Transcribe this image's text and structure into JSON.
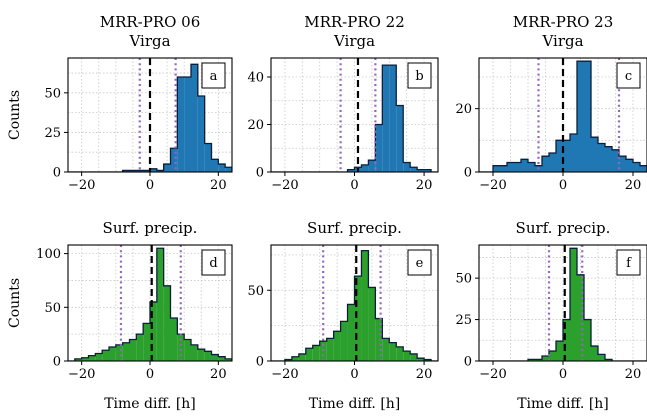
{
  "chart_data": [
    {
      "id": "a",
      "type": "histogram",
      "color": "#1f77b4",
      "title_line1": "MRR-PRO 06",
      "title_line2": "Virga",
      "ylabel": "Counts",
      "xlabel": "",
      "xlim": [
        -24,
        24
      ],
      "ylim": [
        0,
        72
      ],
      "xticks": [
        -20,
        0,
        20
      ],
      "yticks": [
        0,
        25,
        50
      ],
      "bin_width": 2,
      "bin_start": -24,
      "counts": [
        0,
        0,
        0,
        0,
        0,
        0,
        0,
        0,
        1,
        1,
        1,
        1,
        2,
        1,
        5,
        15,
        60,
        60,
        68,
        48,
        18,
        8,
        5,
        3
      ],
      "median": 0,
      "lower": -3,
      "upper": 7.5
    },
    {
      "id": "b",
      "type": "histogram",
      "color": "#1f77b4",
      "title_line1": "MRR-PRO 22",
      "title_line2": "Virga",
      "ylabel": "",
      "xlabel": "",
      "xlim": [
        -24,
        24
      ],
      "ylim": [
        0,
        48
      ],
      "xticks": [
        -20,
        0,
        20
      ],
      "yticks": [
        0,
        20,
        40
      ],
      "bin_width": 2,
      "bin_start": -24,
      "counts": [
        0,
        0,
        0,
        0,
        0,
        0,
        0,
        0,
        0,
        0,
        0,
        1,
        2,
        3,
        5,
        20,
        45,
        45,
        28,
        4,
        2,
        1,
        1,
        0
      ],
      "median": 1,
      "lower": -4,
      "upper": 6
    },
    {
      "id": "c",
      "type": "histogram",
      "color": "#1f77b4",
      "title_line1": "MRR-PRO 23",
      "title_line2": "Virga",
      "ylabel": "",
      "xlabel": "",
      "xlim": [
        -24,
        24
      ],
      "ylim": [
        0,
        36
      ],
      "xticks": [
        -20,
        0,
        20
      ],
      "yticks": [
        0,
        20
      ],
      "bin_width": 2,
      "bin_start": -24,
      "counts": [
        0,
        0,
        2,
        2,
        3,
        3,
        4,
        3,
        2,
        5,
        6,
        10,
        10,
        12,
        35,
        35,
        11,
        9,
        8,
        7,
        5,
        4,
        3,
        2
      ],
      "median": 0,
      "lower": -7,
      "upper": 16
    },
    {
      "id": "d",
      "type": "histogram",
      "color": "#2ca02c",
      "title_line1": "Surf. precip.",
      "title_line2": "",
      "ylabel": "Counts",
      "xlabel": "Time diff. [h]",
      "xlim": [
        -24,
        24
      ],
      "ylim": [
        0,
        108
      ],
      "xticks": [
        -20,
        0,
        20
      ],
      "yticks": [
        0,
        50,
        100
      ],
      "bin_width": 2,
      "bin_start": -24,
      "counts": [
        0,
        2,
        3,
        5,
        7,
        10,
        13,
        15,
        17,
        20,
        25,
        35,
        55,
        105,
        70,
        40,
        25,
        20,
        15,
        11,
        9,
        6,
        4,
        2
      ],
      "median": 0.5,
      "lower": -8.5,
      "upper": 9
    },
    {
      "id": "e",
      "type": "histogram",
      "color": "#2ca02c",
      "title_line1": "Surf. precip.",
      "title_line2": "",
      "ylabel": "",
      "xlabel": "Time diff. [h]",
      "xlim": [
        -24,
        24
      ],
      "ylim": [
        0,
        82
      ],
      "xticks": [
        -20,
        0,
        20
      ],
      "yticks": [
        0,
        50
      ],
      "bin_width": 2,
      "bin_start": -24,
      "counts": [
        0,
        0,
        1,
        3,
        5,
        9,
        11,
        14,
        16,
        21,
        28,
        40,
        60,
        78,
        52,
        30,
        16,
        13,
        10,
        7,
        5,
        2,
        1,
        0
      ],
      "median": 0.5,
      "lower": -9,
      "upper": 7.5
    },
    {
      "id": "f",
      "type": "histogram",
      "color": "#2ca02c",
      "title_line1": "Surf. precip.",
      "title_line2": "",
      "ylabel": "",
      "xlabel": "Time diff. [h]",
      "xlim": [
        -24,
        24
      ],
      "ylim": [
        0,
        70
      ],
      "xticks": [
        -20,
        0,
        20
      ],
      "yticks": [
        0,
        25,
        50
      ],
      "bin_width": 2,
      "bin_start": -24,
      "counts": [
        0,
        0,
        0,
        0,
        0,
        0,
        0,
        1,
        1,
        3,
        6,
        12,
        25,
        68,
        52,
        25,
        9,
        4,
        1,
        0,
        0,
        0,
        0,
        0
      ],
      "median": 0.5,
      "lower": -4,
      "upper": 5.5
    }
  ]
}
